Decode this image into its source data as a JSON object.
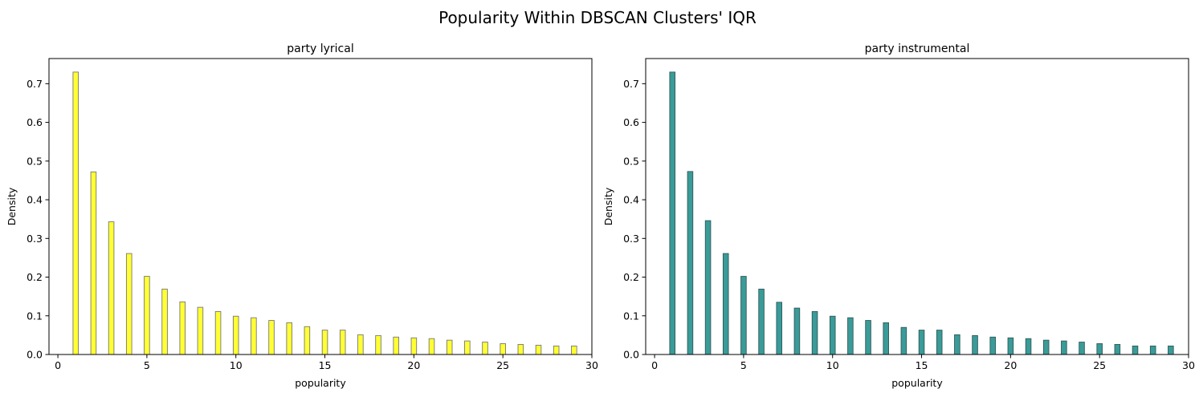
{
  "figure": {
    "suptitle": "Popularity Within DBSCAN Clusters' IQR"
  },
  "chart_data": [
    {
      "type": "bar",
      "title": "party lyrical",
      "xlabel": "popularity",
      "ylabel": "Density",
      "xlim": [
        -0.5,
        30
      ],
      "ylim": [
        0,
        0.765
      ],
      "xticks": [
        0,
        5,
        10,
        15,
        20,
        25,
        30
      ],
      "yticks": [
        0.0,
        0.1,
        0.2,
        0.3,
        0.4,
        0.5,
        0.6,
        0.7
      ],
      "bar_color": "#ffff33",
      "edge_color": "#777777",
      "bins": [
        {
          "x": 1,
          "y": 0.73
        },
        {
          "x": 2,
          "y": 0.472
        },
        {
          "x": 3,
          "y": 0.343
        },
        {
          "x": 4,
          "y": 0.261
        },
        {
          "x": 5,
          "y": 0.202
        },
        {
          "x": 6,
          "y": 0.169
        },
        {
          "x": 7,
          "y": 0.136
        },
        {
          "x": 8,
          "y": 0.122
        },
        {
          "x": 9,
          "y": 0.111
        },
        {
          "x": 10,
          "y": 0.099
        },
        {
          "x": 11,
          "y": 0.095
        },
        {
          "x": 12,
          "y": 0.088
        },
        {
          "x": 13,
          "y": 0.082
        },
        {
          "x": 14,
          "y": 0.072
        },
        {
          "x": 15,
          "y": 0.063
        },
        {
          "x": 16,
          "y": 0.063
        },
        {
          "x": 17,
          "y": 0.051
        },
        {
          "x": 18,
          "y": 0.049
        },
        {
          "x": 19,
          "y": 0.045
        },
        {
          "x": 20,
          "y": 0.043
        },
        {
          "x": 21,
          "y": 0.041
        },
        {
          "x": 22,
          "y": 0.037
        },
        {
          "x": 23,
          "y": 0.035
        },
        {
          "x": 24,
          "y": 0.032
        },
        {
          "x": 25,
          "y": 0.028
        },
        {
          "x": 26,
          "y": 0.026
        },
        {
          "x": 27,
          "y": 0.024
        },
        {
          "x": 28,
          "y": 0.022
        },
        {
          "x": 29,
          "y": 0.022
        }
      ]
    },
    {
      "type": "bar",
      "title": "party instrumental",
      "xlabel": "popularity",
      "ylabel": "Density",
      "xlim": [
        -0.5,
        30
      ],
      "ylim": [
        0,
        0.765
      ],
      "xticks": [
        0,
        5,
        10,
        15,
        20,
        25,
        30
      ],
      "yticks": [
        0.0,
        0.1,
        0.2,
        0.3,
        0.4,
        0.5,
        0.6,
        0.7
      ],
      "bar_color": "#3a9b98",
      "edge_color": "#2f5a59",
      "bins": [
        {
          "x": 1,
          "y": 0.73
        },
        {
          "x": 2,
          "y": 0.473
        },
        {
          "x": 3,
          "y": 0.346
        },
        {
          "x": 4,
          "y": 0.261
        },
        {
          "x": 5,
          "y": 0.202
        },
        {
          "x": 6,
          "y": 0.169
        },
        {
          "x": 7,
          "y": 0.135
        },
        {
          "x": 8,
          "y": 0.12
        },
        {
          "x": 9,
          "y": 0.111
        },
        {
          "x": 10,
          "y": 0.099
        },
        {
          "x": 11,
          "y": 0.095
        },
        {
          "x": 12,
          "y": 0.088
        },
        {
          "x": 13,
          "y": 0.082
        },
        {
          "x": 14,
          "y": 0.07
        },
        {
          "x": 15,
          "y": 0.063
        },
        {
          "x": 16,
          "y": 0.063
        },
        {
          "x": 17,
          "y": 0.051
        },
        {
          "x": 18,
          "y": 0.049
        },
        {
          "x": 19,
          "y": 0.045
        },
        {
          "x": 20,
          "y": 0.043
        },
        {
          "x": 21,
          "y": 0.041
        },
        {
          "x": 22,
          "y": 0.037
        },
        {
          "x": 23,
          "y": 0.035
        },
        {
          "x": 24,
          "y": 0.032
        },
        {
          "x": 25,
          "y": 0.028
        },
        {
          "x": 26,
          "y": 0.026
        },
        {
          "x": 27,
          "y": 0.022
        },
        {
          "x": 28,
          "y": 0.022
        },
        {
          "x": 29,
          "y": 0.022
        }
      ]
    }
  ]
}
